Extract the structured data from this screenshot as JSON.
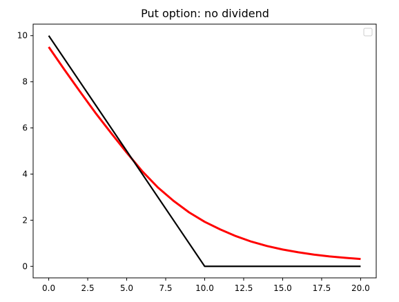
{
  "chart_data": {
    "type": "line",
    "title": "Put option: no dividend",
    "xlabel": "",
    "ylabel": "",
    "xlim": [
      -1.0,
      21.0
    ],
    "ylim": [
      -0.5,
      10.5
    ],
    "xticks": [
      0.0,
      2.5,
      5.0,
      7.5,
      10.0,
      12.5,
      15.0,
      17.5,
      20.0
    ],
    "xtick_labels": [
      "0.0",
      "2.5",
      "5.0",
      "7.5",
      "10.0",
      "12.5",
      "15.0",
      "17.5",
      "20.0"
    ],
    "yticks": [
      0,
      2,
      4,
      6,
      8,
      10
    ],
    "ytick_labels": [
      "0",
      "2",
      "4",
      "6",
      "8",
      "10"
    ],
    "grid": false,
    "legend": {
      "placement": "top-right",
      "entries": []
    },
    "series": [
      {
        "color": "#ff0000",
        "linewidth": "thick",
        "x": [
          0,
          1,
          2,
          3,
          4,
          5,
          6,
          7,
          8,
          9,
          10,
          11,
          12,
          13,
          14,
          15,
          16,
          17,
          18,
          19,
          20
        ],
        "y": [
          9.51,
          8.53,
          7.58,
          6.65,
          5.78,
          4.93,
          4.12,
          3.42,
          2.84,
          2.34,
          1.93,
          1.6,
          1.31,
          1.07,
          0.88,
          0.73,
          0.61,
          0.51,
          0.43,
          0.37,
          0.32
        ]
      },
      {
        "color": "#000000",
        "linewidth": "normal",
        "x": [
          0,
          10,
          20
        ],
        "y": [
          10,
          0,
          0
        ]
      }
    ]
  }
}
